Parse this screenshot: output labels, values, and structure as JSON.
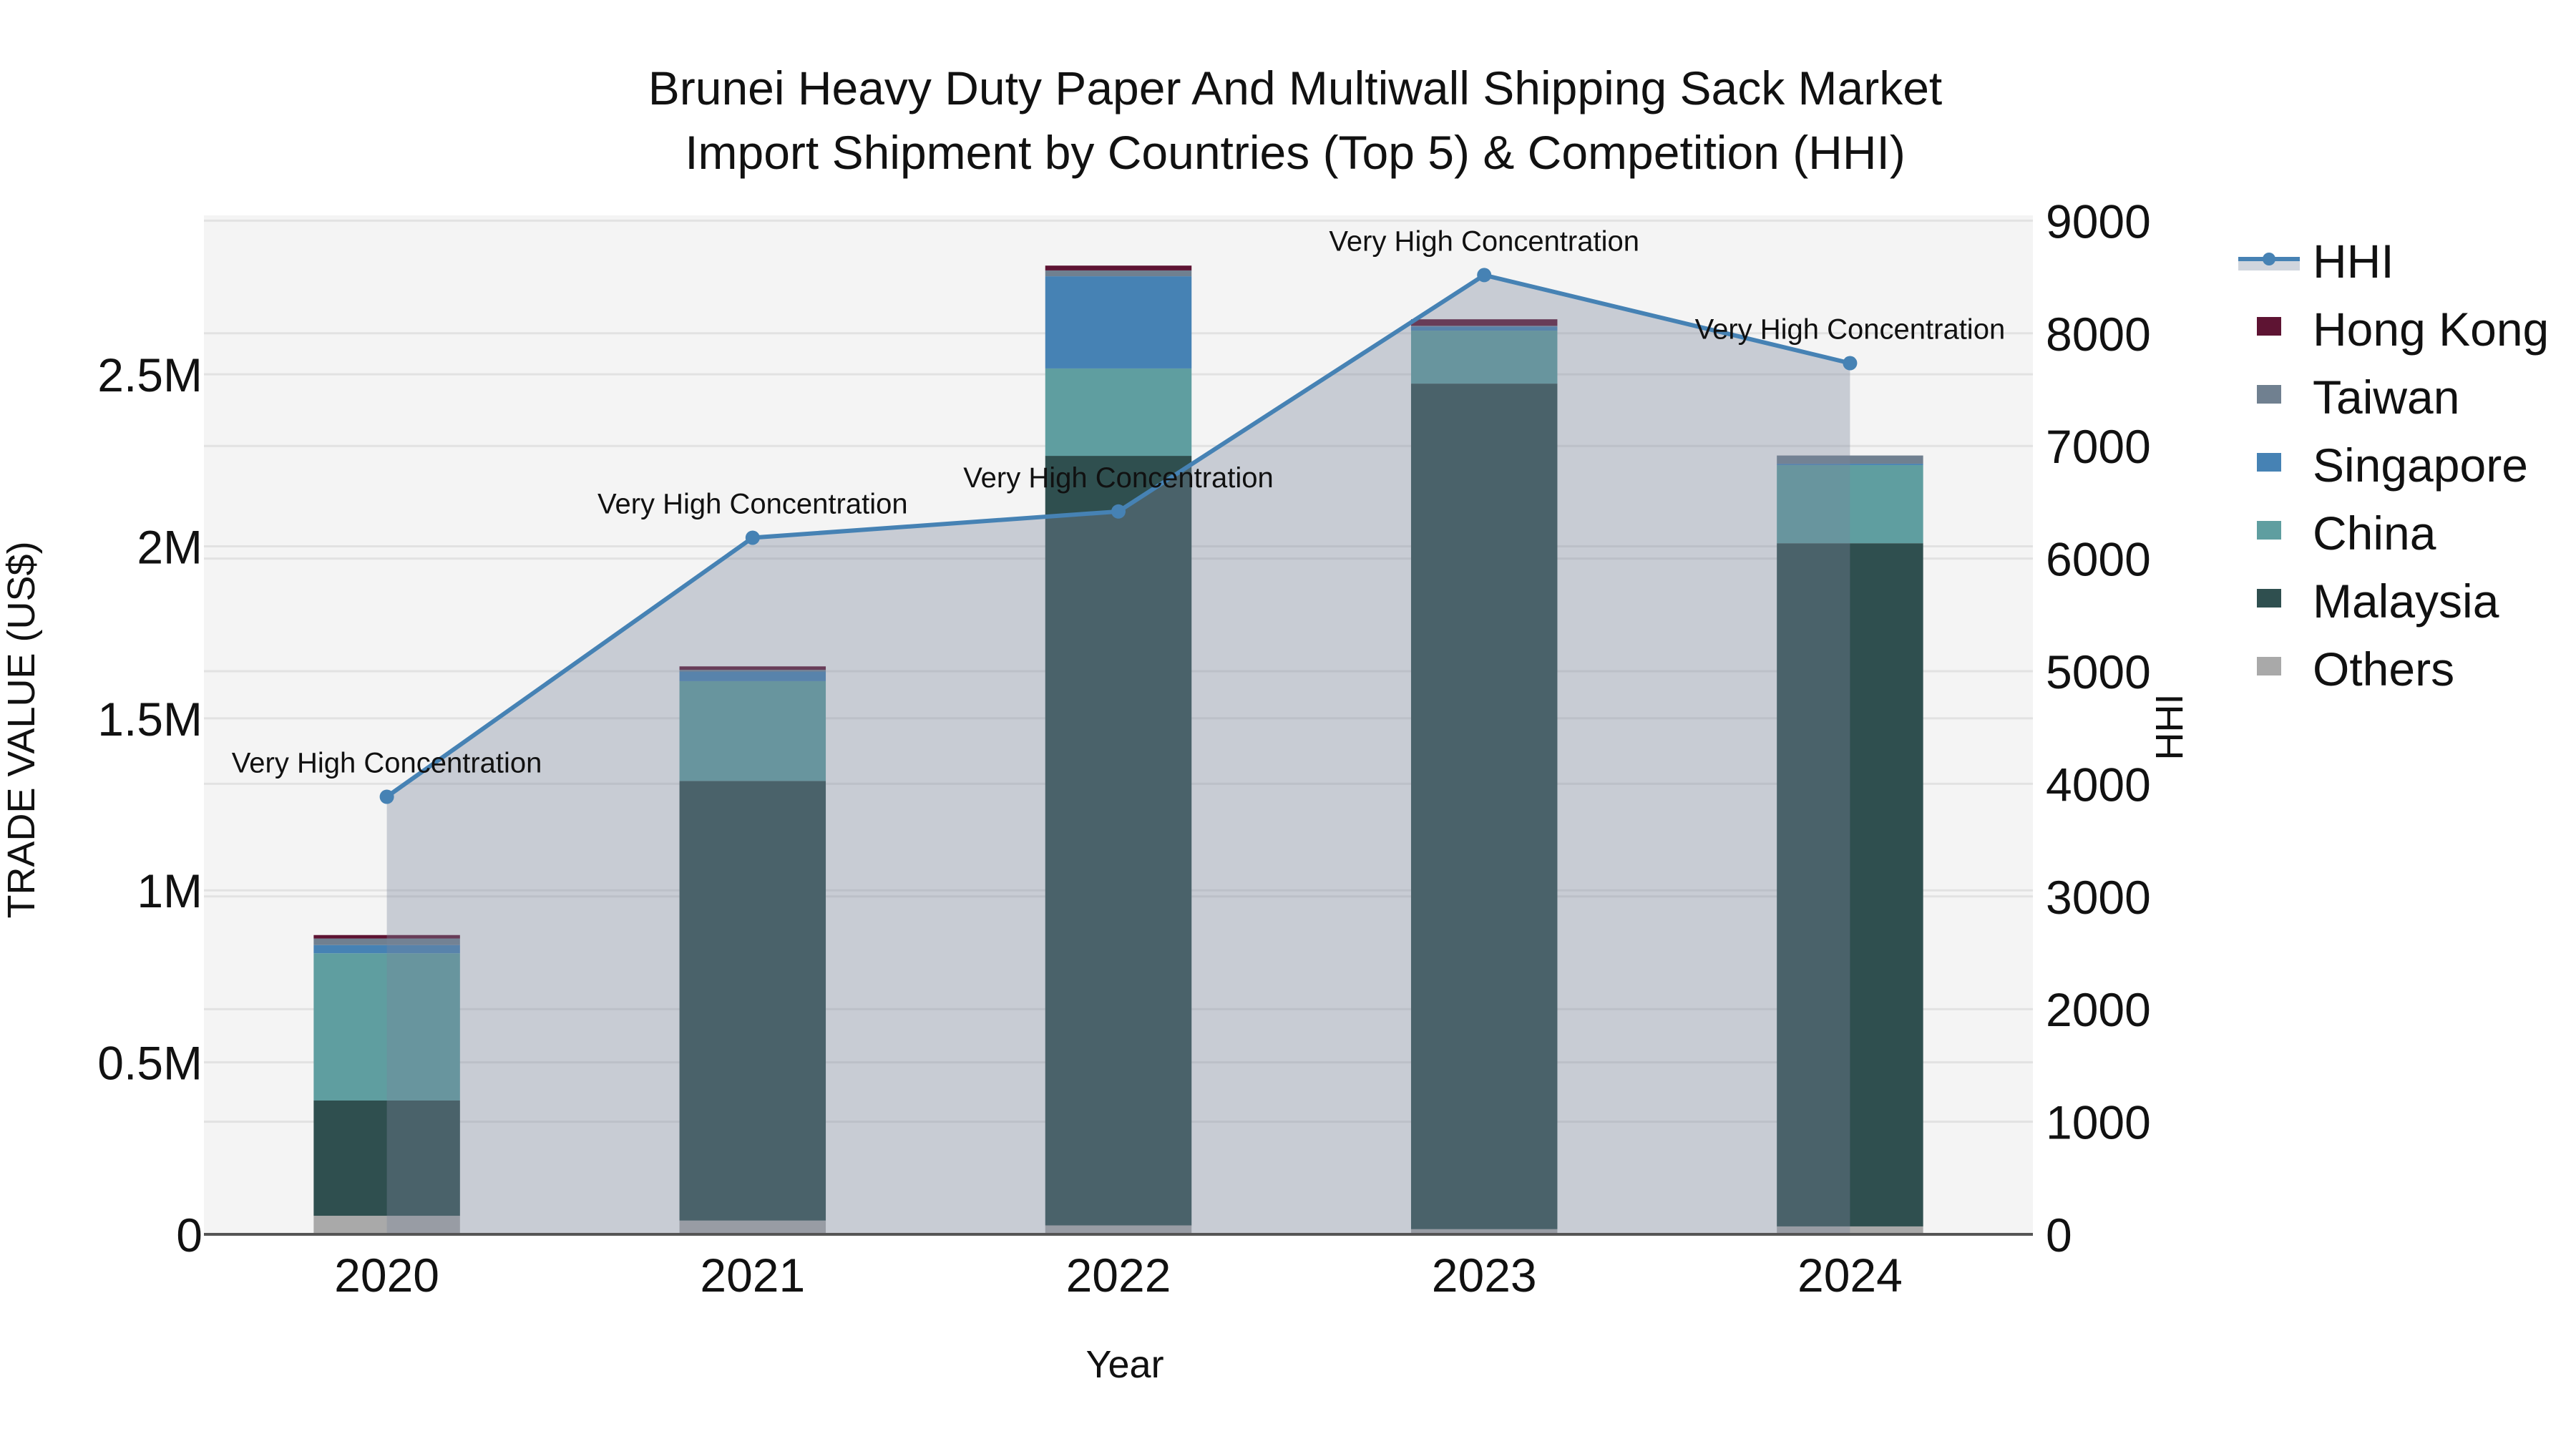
{
  "title": {
    "line1": "Brunei Heavy Duty Paper And Multiwall Shipping Sack Market",
    "line2": "Import Shipment by Countries (Top 5) & Competition (HHI)"
  },
  "axes": {
    "x_title": "Year",
    "y_left_title": "TRADE VALUE (US$)",
    "y_right_title": "HHI",
    "y_left_ticks": [
      {
        "value": 0,
        "label": "0"
      },
      {
        "value": 500000,
        "label": "0.5M"
      },
      {
        "value": 1000000,
        "label": "1M"
      },
      {
        "value": 1500000,
        "label": "1.5M"
      },
      {
        "value": 2000000,
        "label": "2M"
      },
      {
        "value": 2500000,
        "label": "2.5M"
      }
    ],
    "y_right_ticks": [
      {
        "value": 0,
        "label": "0"
      },
      {
        "value": 1000,
        "label": "1000"
      },
      {
        "value": 2000,
        "label": "2000"
      },
      {
        "value": 3000,
        "label": "3000"
      },
      {
        "value": 4000,
        "label": "4000"
      },
      {
        "value": 5000,
        "label": "5000"
      },
      {
        "value": 6000,
        "label": "6000"
      },
      {
        "value": 7000,
        "label": "7000"
      },
      {
        "value": 8000,
        "label": "8000"
      },
      {
        "value": 9000,
        "label": "9000"
      }
    ]
  },
  "legend": [
    {
      "name": "HHI",
      "type": "line",
      "color": "#4682b4"
    },
    {
      "name": "Hong Kong",
      "type": "bar",
      "color": "#5e1433"
    },
    {
      "name": "Taiwan",
      "type": "bar",
      "color": "#708090"
    },
    {
      "name": "Singapore",
      "type": "bar",
      "color": "#4682b4"
    },
    {
      "name": "China",
      "type": "bar",
      "color": "#5f9ea0"
    },
    {
      "name": "Malaysia",
      "type": "bar",
      "color": "#2f4f4f"
    },
    {
      "name": "Others",
      "type": "bar",
      "color": "#a9a9a9"
    }
  ],
  "colors": {
    "plot_bg": "#f4f4f4",
    "grid": "#e2e2e2",
    "hhi_line": "#4682b4",
    "hhi_fill": "rgba(122,132,154,0.36)",
    "axis_line": "#555555"
  },
  "chart_data": {
    "type": "bar",
    "stacked": true,
    "title": "Brunei Heavy Duty Paper And Multiwall Shipping Sack Market Import Shipment by Countries (Top 5) & Competition (HHI)",
    "xlabel": "Year",
    "ylabel": "TRADE VALUE (US$)",
    "y2label": "HHI",
    "categories": [
      "2020",
      "2021",
      "2022",
      "2023",
      "2024"
    ],
    "ylim": [
      0,
      2962000
    ],
    "y2lim": [
      0,
      9047
    ],
    "grid": true,
    "legend_position": "right",
    "series": [
      {
        "name": "Others",
        "color": "#a9a9a9",
        "values": [
          54000,
          40000,
          26000,
          15000,
          23000
        ]
      },
      {
        "name": "Malaysia",
        "color": "#2f4f4f",
        "values": [
          335000,
          1278000,
          2237000,
          2458000,
          1986000
        ]
      },
      {
        "name": "China",
        "color": "#5f9ea0",
        "values": [
          428000,
          290000,
          254000,
          154000,
          227000
        ]
      },
      {
        "name": "Singapore",
        "color": "#4682b4",
        "values": [
          24000,
          28000,
          268000,
          12000,
          4000
        ]
      },
      {
        "name": "Taiwan",
        "color": "#708090",
        "values": [
          19000,
          5000,
          17000,
          2000,
          24000
        ]
      },
      {
        "name": "Hong Kong",
        "color": "#5e1433",
        "values": [
          10000,
          10000,
          14000,
          19000,
          0
        ]
      }
    ],
    "line_series": {
      "name": "HHI",
      "axis": "right",
      "type": "line+area",
      "color": "#4682b4",
      "values": [
        3885,
        6185,
        6418,
        8517,
        7735
      ],
      "annotations": [
        "Very High Concentration",
        "Very High Concentration",
        "Very High Concentration",
        "Very High Concentration",
        "Very High Concentration"
      ]
    }
  }
}
